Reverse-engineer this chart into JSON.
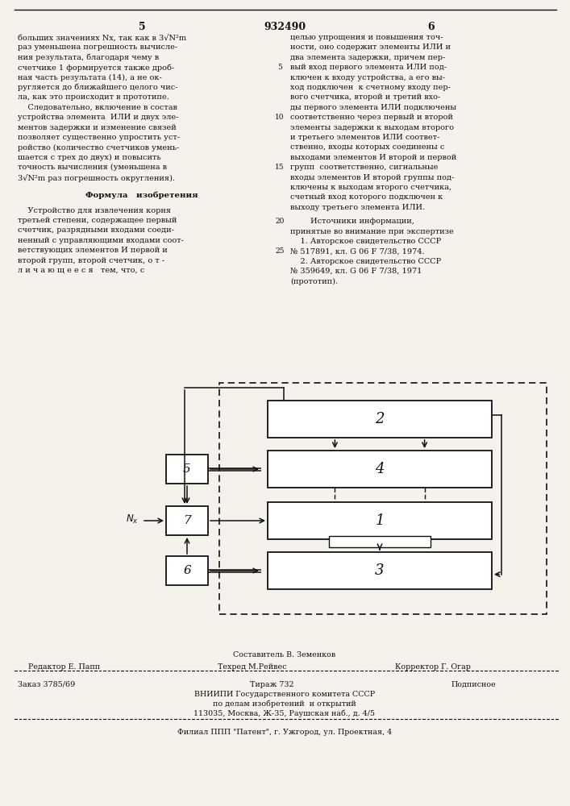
{
  "page_number_left": "5",
  "patent_number": "932490",
  "page_number_right": "6",
  "bg_color": "#f5f2eb",
  "text_color": "#111111",
  "left_col_lines": [
    "больших значениях Nx, так как в 3√N²m",
    "раз уменьшена погрешность вычисле-",
    "ния результата, благодаря чему в",
    "счетчике 1 формируется также дроб-",
    "ная часть результата (14), а не ок-",
    "ругляется до ближайшего целого чис-",
    "ла, как это происходит в прототипе.",
    "    Следовательно, включение в состав",
    "устройства элемента  ИЛИ и двух эле-",
    "ментов задержки и изменение связей",
    "позволяет существенно упростить уст-",
    "ройство (количество счетчиков умень-",
    "шается с трех до двух) и повысить",
    "точность вычисления (уменьшена в",
    "3√N²m раз погрешность округления)."
  ],
  "formula_header": "Формула   изобретения",
  "formula_lines": [
    "    Устройство для извлечения корня",
    "третьей степени, содержащее первый",
    "счетчик, разрядными входами соеди-",
    "ненный с управляющими входами соот-",
    "ветствующих элементов И первой и",
    "второй групп, второй счетчик, о т -",
    "л и ч а ю щ е е с я   тем, что, с"
  ],
  "right_col_lines": [
    "целью упрощения и повышения точ-",
    "ности, оно содержит элементы ИЛИ и",
    "два элемента задержки, причем пер-",
    "вый вход первого элемента ИЛИ под-",
    "ключен к входу устройства, а его вы-",
    "ход подключен  к счетному входу пер-",
    "вого счетчика, второй и третий вхо-",
    "ды первого элемента ИЛИ подключены",
    "соответственно через первый и второй",
    "элементы задержки к выходам второго",
    "и третьего элементов ИЛИ соответ-",
    "ственно, входы которых соединены с",
    "выходами элементов И второй и первой",
    "групп  соответственно, сигнальные",
    "входы элементов И второй группы под-",
    "ключены к выходам второго счетчика,",
    "счетный вход которого подключен к",
    "выходу третьего элемента ИЛИ."
  ],
  "sources_header": "        Источники информации,",
  "sources_sub": "принятые во внимание при экспертизе",
  "source1a": "    1. Авторское свидетельство СССР",
  "source1b": "№ 517891, кл. G 06 F 7/38, 1974.",
  "source2a": "    2. Авторское свидетельство СССР",
  "source2b": "№ 359649, кл. G 06 F 7/38, 1971",
  "source2c": "(прототип).",
  "foot_sostavitel": "Составитель В. Земенков",
  "foot_redaktor": "Редактор Е. Папп",
  "foot_tekhred": "Техред М.Рейвес",
  "foot_korrektor": "Корректор Г. Огар",
  "foot_zakaz": "Заказ 3785/69",
  "foot_tirazh": "Тираж 732",
  "foot_podpisnoe": "Подписное",
  "foot_vniiphi": "ВНИИПИ Государственного комитета СССР",
  "foot_dela": "по делам изобретений  и открытий",
  "foot_addr": "113035, Москва, Ж-35, Раушская наб., д. 4/5",
  "foot_filial": "Филиал ППП \"Патент\", г. Ужгород, ул. Проектная, 4"
}
